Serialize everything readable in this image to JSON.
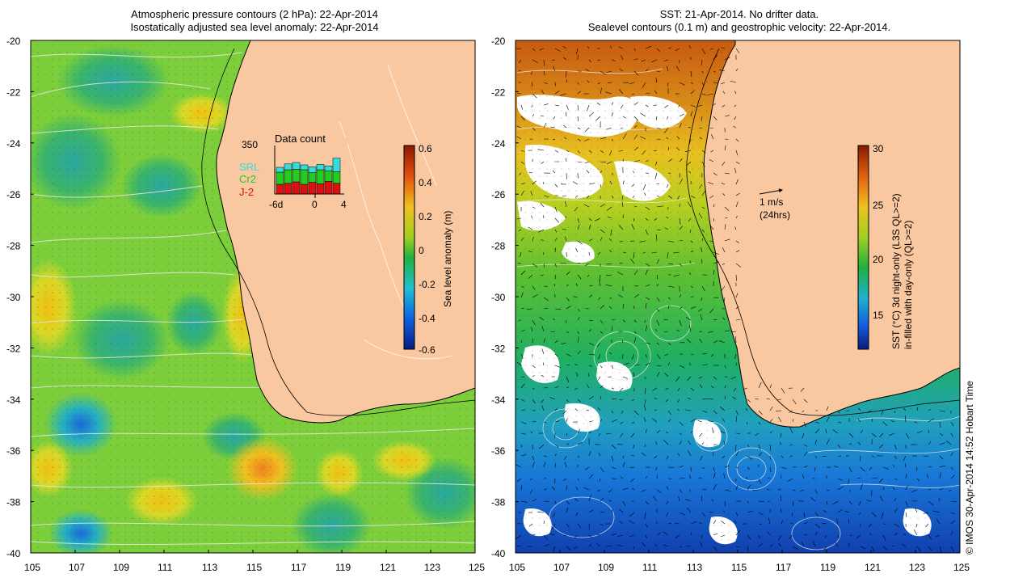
{
  "left": {
    "title1": "Atmospheric pressure contours (2 hPa): 22-Apr-2014",
    "title2": "Isostatically adjusted sea level anomaly: 22-Apr-2014",
    "lat_ticks": [
      "-20",
      "-22",
      "-24",
      "-26",
      "-28",
      "-30",
      "-32",
      "-34",
      "-36",
      "-38",
      "-40"
    ],
    "lon_ticks": [
      "105",
      "107",
      "109",
      "111",
      "113",
      "115",
      "117",
      "119",
      "121",
      "123",
      "125"
    ],
    "colorbar": {
      "label": "Sea level anomaly (m)",
      "ticks": [
        "0.6",
        "0.4",
        "0.2",
        "0",
        "-0.2",
        "-0.4",
        "-0.6"
      ]
    },
    "inset": {
      "title": "Data count",
      "ymax": "350",
      "legend": [
        {
          "name": "SRL",
          "color": "#33dddd"
        },
        {
          "name": "Cr2",
          "color": "#22cc22"
        },
        {
          "name": "J-2",
          "color": "#dd1111"
        }
      ],
      "xticks": [
        "-6d",
        "0",
        "4"
      ],
      "bars": [
        {
          "j2": 0.2,
          "cr2": 0.25,
          "srl": 0.1
        },
        {
          "j2": 0.22,
          "cr2": 0.28,
          "srl": 0.12
        },
        {
          "j2": 0.25,
          "cr2": 0.26,
          "srl": 0.14
        },
        {
          "j2": 0.2,
          "cr2": 0.3,
          "srl": 0.1
        },
        {
          "j2": 0.24,
          "cr2": 0.2,
          "srl": 0.12
        },
        {
          "j2": 0.21,
          "cr2": 0.29,
          "srl": 0.11
        },
        {
          "j2": 0.26,
          "cr2": 0.22,
          "srl": 0.1
        },
        {
          "j2": 0.22,
          "cr2": 0.24,
          "srl": 0.28
        }
      ]
    }
  },
  "right": {
    "title1": "SST: 21-Apr-2014. No drifter data.",
    "title2": "Sealevel contours (0.1 m) and geostrophic velocity: 22-Apr-2014.",
    "lat_ticks": [
      "-20",
      "-22",
      "-24",
      "-26",
      "-28",
      "-30",
      "-32",
      "-34",
      "-36",
      "-38",
      "-40"
    ],
    "lon_ticks": [
      "105",
      "107",
      "109",
      "111",
      "113",
      "115",
      "117",
      "119",
      "121",
      "123",
      "125"
    ],
    "colorbar": {
      "label1": "SST (°C)  3d night-only (L3S QL>=2)",
      "label2": "in-filled with day-only (QL>=2)",
      "ticks": [
        "30",
        "25",
        "20",
        "15"
      ]
    },
    "scale_arrow": {
      "label1": "1 m/s",
      "label2": "(24hrs)"
    }
  },
  "credit": "© IMOS 30-Apr-2014 14:52 Hobart Time",
  "colors": {
    "land": "#f9c8a0",
    "sla_base": "#7ccf3a",
    "sst_warm": "#c8601a",
    "sst_cool": "#1a6fd0"
  }
}
